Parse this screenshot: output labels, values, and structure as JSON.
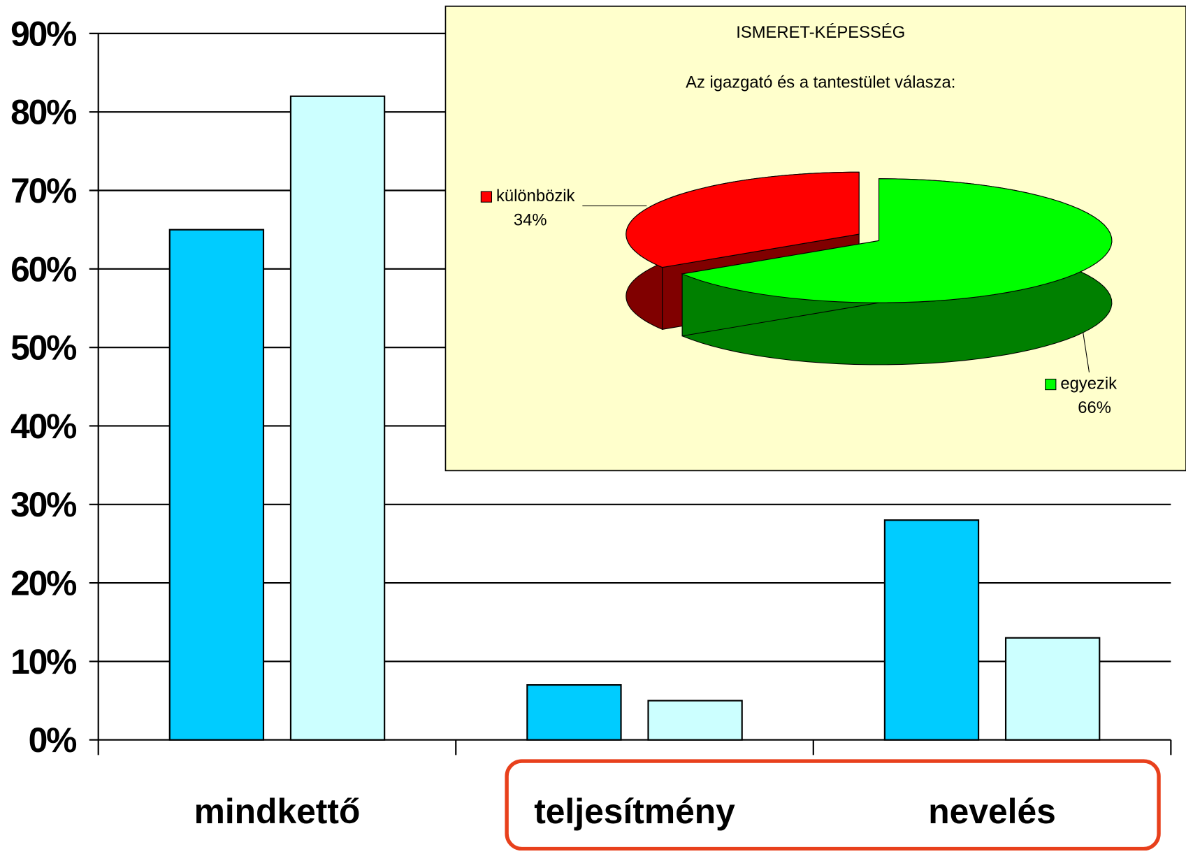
{
  "chart_data": [
    {
      "type": "bar",
      "categories": [
        "mindkettő",
        "teljesítmény",
        "nevelés"
      ],
      "series": [
        {
          "color": "#00ccff",
          "values": [
            65,
            7,
            28
          ]
        },
        {
          "color": "#ccffff",
          "values": [
            82,
            5,
            13
          ]
        }
      ],
      "ylim": [
        0,
        90
      ],
      "yticks": [
        {
          "value": 0,
          "label": "0%"
        },
        {
          "value": 10,
          "label": "10%"
        },
        {
          "value": 20,
          "label": "20%"
        },
        {
          "value": 30,
          "label": "30%"
        },
        {
          "value": 40,
          "label": "40%"
        },
        {
          "value": 50,
          "label": "50%"
        },
        {
          "value": 60,
          "label": "60%"
        },
        {
          "value": 70,
          "label": "70%"
        },
        {
          "value": 80,
          "label": "80%"
        },
        {
          "value": 90,
          "label": "90%"
        }
      ],
      "grid": true
    },
    {
      "type": "pie",
      "title": "ISMERET-KÉPESSÉG",
      "subtitle": "Az igazgató és a tantestület válasza:",
      "categories": [
        "különbözik",
        "egyezik"
      ],
      "values": [
        34,
        66
      ],
      "value_labels": [
        "34%",
        "66%"
      ],
      "colors": [
        "#ff0000",
        "#00ff00"
      ]
    }
  ]
}
